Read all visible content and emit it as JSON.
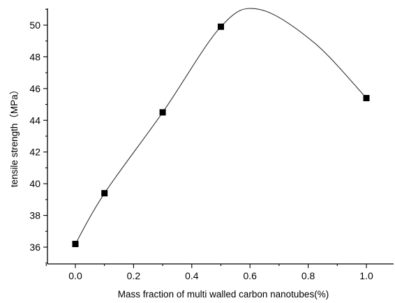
{
  "chart_data": {
    "type": "scatter",
    "xlabel": "Mass fraction of multi walled carbon nanotubes(%)",
    "ylabel": "tensile strength（MPa）",
    "xlim": [
      -0.1,
      1.08
    ],
    "ylim": [
      35.0,
      51.1
    ],
    "x_ticks": [
      "0.0",
      "0.2",
      "0.4",
      "0.6",
      "0.8",
      "1.0"
    ],
    "y_ticks": [
      "36",
      "38",
      "40",
      "42",
      "44",
      "46",
      "48",
      "50"
    ],
    "x_tick_values": [
      0.0,
      0.2,
      0.4,
      0.6,
      0.8,
      1.0
    ],
    "y_tick_values": [
      36,
      38,
      40,
      42,
      44,
      46,
      48,
      50
    ],
    "series": [
      {
        "points": [
          {
            "x": 0.0,
            "y": 36.2
          },
          {
            "x": 0.1,
            "y": 39.4
          },
          {
            "x": 0.3,
            "y": 44.5
          },
          {
            "x": 0.5,
            "y": 49.9
          },
          {
            "x": 1.0,
            "y": 45.4
          }
        ],
        "fit_curve": "smooth spline through points, peak ≈ 51.0 at x ≈ 0.63"
      }
    ],
    "grid": false,
    "legend": "none"
  }
}
